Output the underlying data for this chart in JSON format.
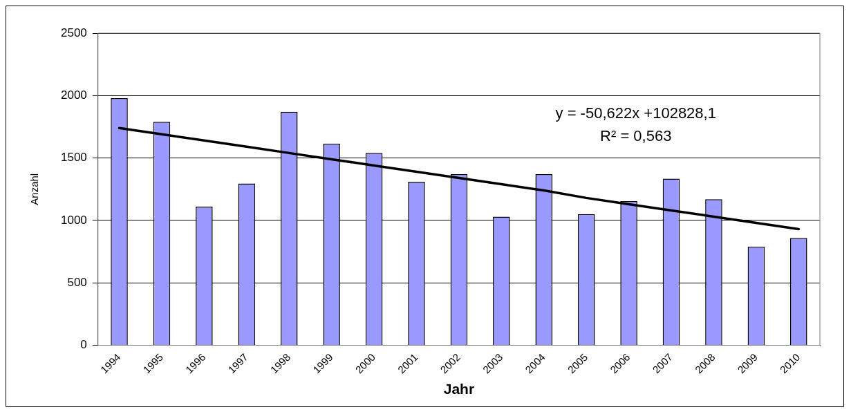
{
  "chart_data": {
    "type": "bar",
    "xlabel": "Jahr",
    "ylabel": "Anzahl",
    "categories": [
      "1994",
      "1995",
      "1996",
      "1997",
      "1998",
      "1999",
      "2000",
      "2001",
      "2002",
      "2003",
      "2004",
      "2005",
      "2006",
      "2007",
      "2008",
      "2009",
      "2010"
    ],
    "series": [
      {
        "color": "#9999ff",
        "values": [
          1980,
          1790,
          1110,
          1295,
          1870,
          1615,
          1540,
          1310,
          1370,
          1030,
          1370,
          1050,
          1155,
          1335,
          1170,
          790,
          860
        ]
      },
      {
        "type": "line",
        "color": "#000000",
        "values": [
          1740,
          1690,
          1640,
          1590,
          1540,
          1490,
          1440,
          1390,
          1340,
          1290,
          1240,
          1180,
          1130,
          1080,
          1030,
          980,
          930
        ]
      }
    ],
    "ylim": [
      0,
      2500
    ],
    "yticks": [
      0,
      500,
      1000,
      1500,
      2000,
      2500
    ],
    "grid": "y",
    "legend": false,
    "marker": "none",
    "annotations": [
      "y = -50,622x +102828,1",
      "R² = 0,563"
    ]
  }
}
